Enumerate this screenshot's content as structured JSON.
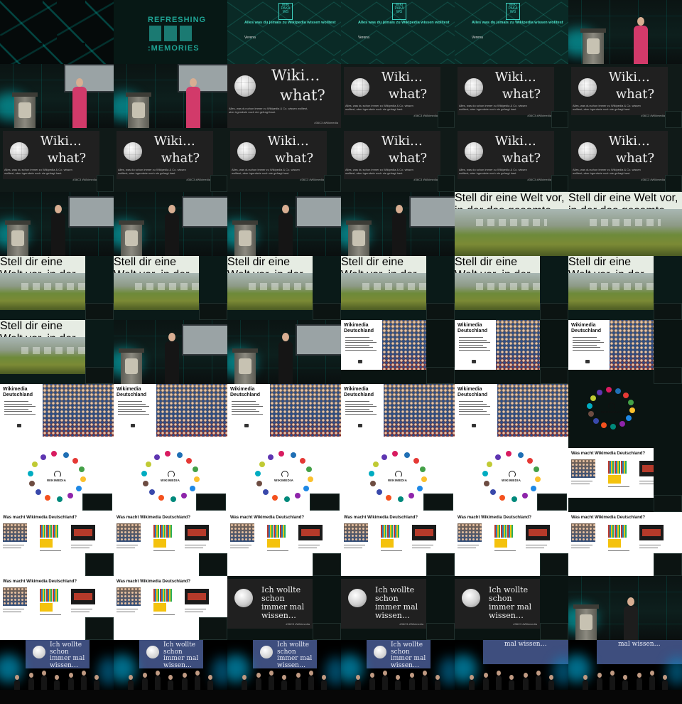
{
  "grid": {
    "columns": 6,
    "rows": 11
  },
  "logo": {
    "line1": "REFRESHING",
    "line2": ":MEMORIES"
  },
  "wikipaka": {
    "logo_text": "WIKI PAKA WG",
    "title": "Alles was du jemals zu Wikipedia wissen wolltest",
    "speaker": "Verena"
  },
  "wikiwhat": {
    "line1": "Wiki…",
    "line2": "what?",
    "subtitle": "Alles, was du schon immer zu Wikipedia & Co. wissen wolltest, aber irgendwie noch nie gefragt hast.",
    "hashtag": "#36C3 #Wikimedia"
  },
  "stell": {
    "text": "Stell dir eine Welt vor, in der das gesamte Wissen der Menschheit allen frei zugänglich ist."
  },
  "wmde": {
    "title": "Wikimedia Deutschland"
  },
  "ring": {
    "label": "WIKIMEDIA"
  },
  "wasmacht": {
    "title": "Was macht Wikimedia Deutschland?"
  },
  "ichwollte": {
    "text": "Ich wollte schon immer mal wissen…",
    "hashtag": "#36C3 #Wikimedia"
  },
  "final": {
    "screen_text": "Ich wollte schon immer mal wissen…",
    "screen_text_short": "mal wissen…"
  },
  "colors": {
    "accent": "#1fa394",
    "slide_green": "#2e7d32",
    "dark_slide": "#202020"
  }
}
